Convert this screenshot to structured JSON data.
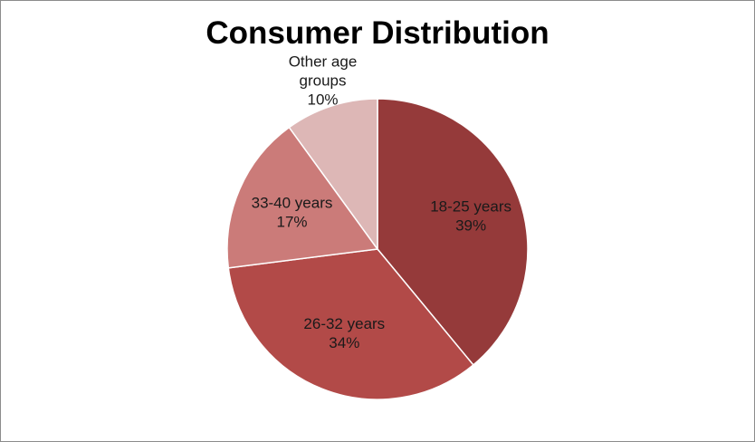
{
  "chart_data": {
    "type": "pie",
    "title": "Consumer Distribution",
    "start_angle_deg": 0,
    "direction": "clockwise",
    "slices": [
      {
        "label": [
          "18-25 years"
        ],
        "value": 39,
        "value_label": "39%",
        "color": "#953a3a"
      },
      {
        "label": [
          "26-32 years"
        ],
        "value": 34,
        "value_label": "34%",
        "color": "#b24a48"
      },
      {
        "label": [
          "33-40 years"
        ],
        "value": 17,
        "value_label": "17%",
        "color": "#cb7b79"
      },
      {
        "label": [
          "Other age",
          "groups"
        ],
        "value": 10,
        "value_label": "10%",
        "color": "#ddb7b6"
      }
    ],
    "legend": "none"
  }
}
